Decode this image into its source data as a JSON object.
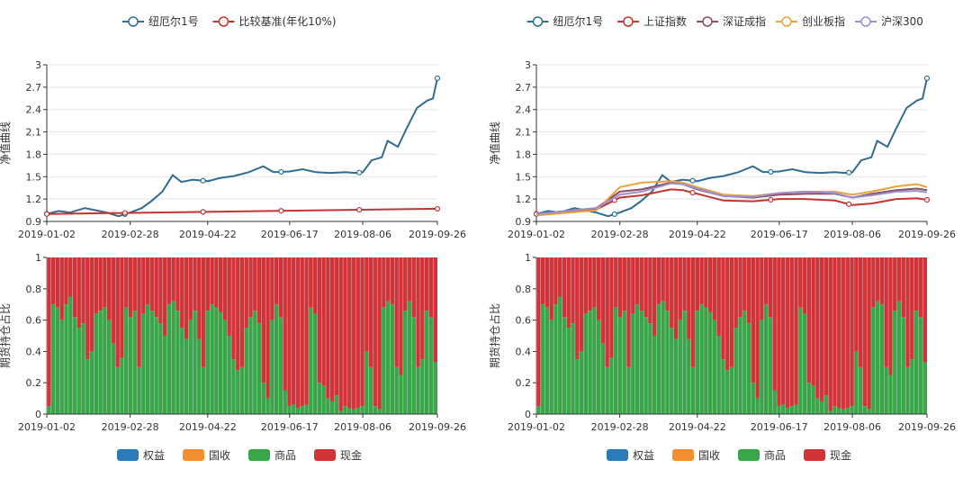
{
  "chart_data": [
    {
      "id": "nav-left",
      "type": "line",
      "ylabel": "净值曲线",
      "ylim": [
        0.9,
        3.0
      ],
      "yticks": [
        "0.9",
        "1.2",
        "1.5",
        "1.8",
        "2.1",
        "2.4",
        "2.7",
        "3"
      ],
      "xticks": [
        "2019-01-02",
        "2019-02-28",
        "2019-04-22",
        "2019-06-17",
        "2019-08-06",
        "2019-09-26"
      ],
      "grid": true,
      "legend_position": "top",
      "series": [
        {
          "name": "纽厄尔1号",
          "color": "#2f6d8f",
          "x": [
            "2019-01-02",
            "2019-01-10",
            "2019-01-18",
            "2019-01-28",
            "2019-02-12",
            "2019-02-20",
            "2019-02-28",
            "2019-03-08",
            "2019-03-15",
            "2019-03-22",
            "2019-03-29",
            "2019-04-04",
            "2019-04-12",
            "2019-04-22",
            "2019-04-30",
            "2019-05-10",
            "2019-05-20",
            "2019-05-30",
            "2019-06-06",
            "2019-06-17",
            "2019-06-26",
            "2019-07-05",
            "2019-07-15",
            "2019-07-25",
            "2019-08-01",
            "2019-08-06",
            "2019-08-12",
            "2019-08-19",
            "2019-08-23",
            "2019-08-30",
            "2019-09-05",
            "2019-09-12",
            "2019-09-19",
            "2019-09-23",
            "2019-09-26"
          ],
          "values": [
            1.0,
            1.04,
            1.02,
            1.08,
            1.02,
            0.97,
            1.02,
            1.08,
            1.18,
            1.3,
            1.52,
            1.43,
            1.46,
            1.44,
            1.48,
            1.51,
            1.56,
            1.64,
            1.56,
            1.57,
            1.6,
            1.56,
            1.55,
            1.56,
            1.55,
            1.56,
            1.72,
            1.76,
            1.98,
            1.9,
            2.15,
            2.42,
            2.52,
            2.55,
            2.82
          ]
        },
        {
          "name": "比较基准(年化10%)",
          "color": "#c23531",
          "x": [
            "2019-01-02",
            "2019-09-26"
          ],
          "values": [
            1.0,
            1.07
          ]
        }
      ]
    },
    {
      "id": "pos-left",
      "type": "bar",
      "ylabel": "期货持仓占比",
      "ylim": [
        0,
        1
      ],
      "yticks": [
        "0",
        "0.2",
        "0.4",
        "0.6",
        "0.8",
        "1"
      ],
      "xticks": [
        "2019-01-02",
        "2019-02-28",
        "2019-04-22",
        "2019-06-17",
        "2019-08-06",
        "2019-09-26"
      ],
      "legend_position": "bottom",
      "series": [
        {
          "name": "权益",
          "color": "#2b7bba"
        },
        {
          "name": "国收",
          "color": "#f28e2b"
        },
        {
          "name": "商品",
          "color": "#3aa64a"
        },
        {
          "name": "现金",
          "color": "#d13438"
        }
      ],
      "commodity_share": [
        0.05,
        0.7,
        0.68,
        0.6,
        0.7,
        0.75,
        0.62,
        0.55,
        0.58,
        0.35,
        0.4,
        0.64,
        0.66,
        0.68,
        0.6,
        0.45,
        0.3,
        0.36,
        0.68,
        0.62,
        0.66,
        0.3,
        0.64,
        0.7,
        0.66,
        0.62,
        0.58,
        0.5,
        0.7,
        0.72,
        0.66,
        0.55,
        0.48,
        0.6,
        0.66,
        0.48,
        0.3,
        0.66,
        0.7,
        0.68,
        0.65,
        0.6,
        0.5,
        0.35,
        0.28,
        0.3,
        0.55,
        0.62,
        0.66,
        0.58,
        0.2,
        0.1,
        0.6,
        0.7,
        0.62,
        0.15,
        0.05,
        0.06,
        0.04,
        0.05,
        0.06,
        0.68,
        0.64,
        0.2,
        0.18,
        0.1,
        0.08,
        0.12,
        0.02,
        0.05,
        0.04,
        0.03,
        0.04,
        0.05,
        0.4,
        0.3,
        0.05,
        0.03,
        0.68,
        0.72,
        0.7,
        0.3,
        0.25,
        0.66,
        0.72,
        0.62,
        0.3,
        0.35,
        0.66,
        0.62,
        0.33
      ],
      "cash_share": "remainder"
    },
    {
      "id": "nav-right",
      "type": "line",
      "ylabel": "净值曲线",
      "ylim": [
        0.9,
        3.0
      ],
      "yticks": [
        "0.9",
        "1.2",
        "1.5",
        "1.8",
        "2.1",
        "2.4",
        "2.7",
        "3"
      ],
      "xticks": [
        "2019-01-02",
        "2019-02-28",
        "2019-04-22",
        "2019-06-17",
        "2019-08-06",
        "2019-09-26"
      ],
      "grid": true,
      "legend_position": "top",
      "series": [
        {
          "name": "纽厄尔1号",
          "color": "#2f6d8f",
          "x": [
            "2019-01-02",
            "2019-01-10",
            "2019-01-18",
            "2019-01-28",
            "2019-02-12",
            "2019-02-20",
            "2019-02-28",
            "2019-03-08",
            "2019-03-15",
            "2019-03-22",
            "2019-03-29",
            "2019-04-04",
            "2019-04-12",
            "2019-04-22",
            "2019-04-30",
            "2019-05-10",
            "2019-05-20",
            "2019-05-30",
            "2019-06-06",
            "2019-06-17",
            "2019-06-26",
            "2019-07-05",
            "2019-07-15",
            "2019-07-25",
            "2019-08-01",
            "2019-08-06",
            "2019-08-12",
            "2019-08-19",
            "2019-08-23",
            "2019-08-30",
            "2019-09-05",
            "2019-09-12",
            "2019-09-19",
            "2019-09-23",
            "2019-09-26"
          ],
          "values": [
            1.0,
            1.04,
            1.02,
            1.08,
            1.02,
            0.97,
            1.02,
            1.08,
            1.18,
            1.3,
            1.52,
            1.43,
            1.46,
            1.44,
            1.48,
            1.51,
            1.56,
            1.64,
            1.56,
            1.57,
            1.6,
            1.56,
            1.55,
            1.56,
            1.55,
            1.56,
            1.72,
            1.76,
            1.98,
            1.9,
            2.15,
            2.42,
            2.52,
            2.55,
            2.82
          ]
        },
        {
          "name": "上证指数",
          "color": "#c23531",
          "x": [
            "2019-01-02",
            "2019-02-12",
            "2019-02-28",
            "2019-03-15",
            "2019-04-04",
            "2019-04-12",
            "2019-04-22",
            "2019-05-10",
            "2019-05-30",
            "2019-06-17",
            "2019-07-05",
            "2019-07-25",
            "2019-08-06",
            "2019-08-19",
            "2019-09-05",
            "2019-09-19",
            "2019-09-26"
          ],
          "values": [
            1.0,
            1.06,
            1.22,
            1.25,
            1.33,
            1.32,
            1.27,
            1.18,
            1.17,
            1.2,
            1.2,
            1.18,
            1.12,
            1.14,
            1.2,
            1.21,
            1.19
          ]
        },
        {
          "name": "深证成指",
          "color": "#8a4d62",
          "x": [
            "2019-01-02",
            "2019-02-12",
            "2019-02-28",
            "2019-03-15",
            "2019-04-04",
            "2019-04-12",
            "2019-04-22",
            "2019-05-10",
            "2019-05-30",
            "2019-06-17",
            "2019-07-05",
            "2019-07-25",
            "2019-08-06",
            "2019-08-19",
            "2019-09-05",
            "2019-09-19",
            "2019-09-26"
          ],
          "values": [
            1.0,
            1.08,
            1.3,
            1.33,
            1.42,
            1.4,
            1.33,
            1.24,
            1.22,
            1.26,
            1.27,
            1.27,
            1.22,
            1.27,
            1.32,
            1.34,
            1.32
          ]
        },
        {
          "name": "创业板指",
          "color": "#e8a33d",
          "x": [
            "2019-01-02",
            "2019-02-12",
            "2019-02-28",
            "2019-03-15",
            "2019-04-04",
            "2019-04-12",
            "2019-04-22",
            "2019-05-10",
            "2019-05-30",
            "2019-06-17",
            "2019-07-05",
            "2019-07-25",
            "2019-08-06",
            "2019-08-19",
            "2019-09-05",
            "2019-09-19",
            "2019-09-26"
          ],
          "values": [
            0.98,
            1.05,
            1.36,
            1.42,
            1.44,
            1.42,
            1.36,
            1.26,
            1.24,
            1.28,
            1.3,
            1.3,
            1.26,
            1.3,
            1.37,
            1.4,
            1.36
          ]
        },
        {
          "name": "沪深300",
          "color": "#9b8fd0",
          "x": [
            "2019-01-02",
            "2019-02-12",
            "2019-02-28",
            "2019-03-15",
            "2019-04-04",
            "2019-04-12",
            "2019-04-22",
            "2019-05-10",
            "2019-05-30",
            "2019-06-17",
            "2019-07-05",
            "2019-07-25",
            "2019-08-06",
            "2019-08-19",
            "2019-09-05",
            "2019-09-19",
            "2019-09-26"
          ],
          "values": [
            1.0,
            1.08,
            1.26,
            1.3,
            1.41,
            1.4,
            1.34,
            1.24,
            1.23,
            1.28,
            1.3,
            1.28,
            1.22,
            1.25,
            1.3,
            1.31,
            1.29
          ]
        }
      ]
    },
    {
      "id": "pos-right",
      "type": "bar",
      "ylabel": "期货持仓占比",
      "ylim": [
        0,
        1
      ],
      "yticks": [
        "0",
        "0.2",
        "0.4",
        "0.6",
        "0.8",
        "1"
      ],
      "xticks": [
        "2019-01-02",
        "2019-02-28",
        "2019-04-22",
        "2019-06-17",
        "2019-08-06",
        "2019-09-26"
      ],
      "legend_position": "bottom",
      "series": [
        {
          "name": "权益",
          "color": "#2b7bba"
        },
        {
          "name": "国收",
          "color": "#f28e2b"
        },
        {
          "name": "商品",
          "color": "#3aa64a"
        },
        {
          "name": "现金",
          "color": "#d13438"
        }
      ],
      "commodity_share": [
        0.05,
        0.7,
        0.68,
        0.6,
        0.7,
        0.75,
        0.62,
        0.55,
        0.58,
        0.35,
        0.4,
        0.64,
        0.66,
        0.68,
        0.6,
        0.45,
        0.3,
        0.36,
        0.68,
        0.62,
        0.66,
        0.3,
        0.64,
        0.7,
        0.66,
        0.62,
        0.58,
        0.5,
        0.7,
        0.72,
        0.66,
        0.55,
        0.48,
        0.6,
        0.66,
        0.48,
        0.3,
        0.66,
        0.7,
        0.68,
        0.65,
        0.6,
        0.5,
        0.35,
        0.28,
        0.3,
        0.55,
        0.62,
        0.66,
        0.58,
        0.2,
        0.1,
        0.6,
        0.7,
        0.62,
        0.15,
        0.05,
        0.06,
        0.04,
        0.05,
        0.06,
        0.68,
        0.64,
        0.2,
        0.18,
        0.1,
        0.08,
        0.12,
        0.02,
        0.05,
        0.04,
        0.03,
        0.04,
        0.05,
        0.4,
        0.3,
        0.05,
        0.03,
        0.68,
        0.72,
        0.7,
        0.3,
        0.25,
        0.66,
        0.72,
        0.62,
        0.3,
        0.35,
        0.66,
        0.62,
        0.33
      ],
      "cash_share": "remainder"
    }
  ]
}
